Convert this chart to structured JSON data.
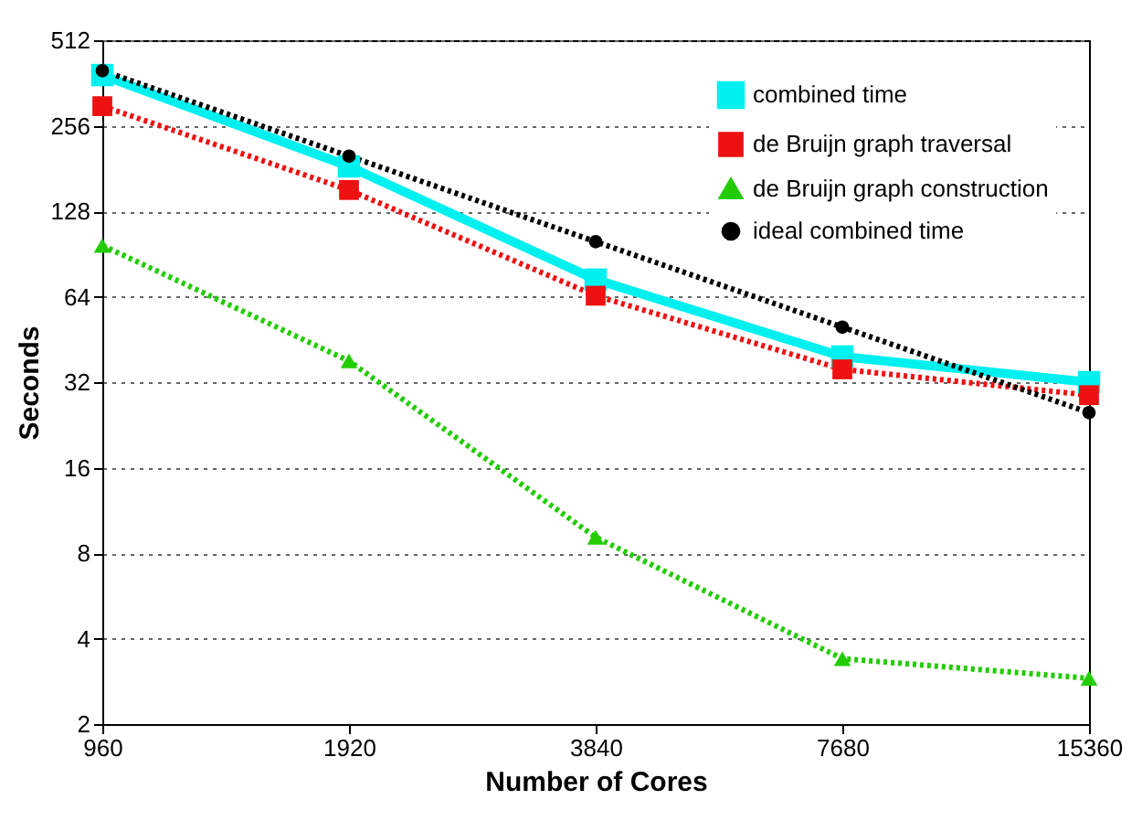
{
  "chart_data": {
    "type": "line",
    "xlabel": "Number of Cores",
    "ylabel": "Seconds",
    "x": [
      960,
      1920,
      3840,
      7680,
      15360
    ],
    "series": [
      {
        "name": "combined time",
        "color": "#00f0f0",
        "marker": "square",
        "line_style": "solid",
        "values": [
          386,
          184,
          73.5,
          39.4,
          32
        ]
      },
      {
        "name": "de Bruijn graph traversal",
        "color": "#ee1111",
        "marker": "square",
        "line_style": "dotted",
        "values": [
          300,
          152,
          64.5,
          35.5,
          28.8
        ]
      },
      {
        "name": "de Bruijn graph construction",
        "color": "#22cc00",
        "marker": "triangle",
        "line_style": "dotted",
        "values": [
          97,
          38,
          9.1,
          3.4,
          2.9
        ]
      },
      {
        "name": "ideal combined time",
        "color": "#000000",
        "marker": "circle",
        "line_style": "dotted",
        "values": [
          400,
          200,
          100,
          50,
          25
        ]
      }
    ],
    "log": "xy",
    "xlim": [
      960,
      15360
    ],
    "xticks": [
      960,
      1920,
      3840,
      7680,
      15360
    ],
    "ylim": [
      2,
      512
    ],
    "yticks": [
      2,
      4,
      8,
      16,
      32,
      64,
      128,
      256,
      512
    ],
    "grid": "y",
    "legend": "top right"
  }
}
